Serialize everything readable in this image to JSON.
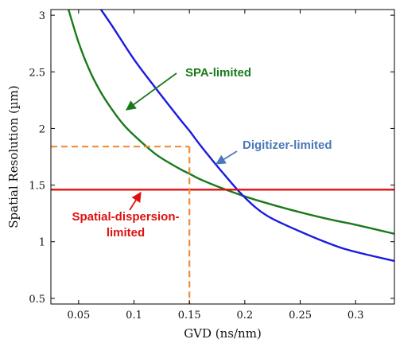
{
  "chart_data": {
    "type": "line",
    "title": "",
    "xlabel": "GVD (ns/nm)",
    "ylabel": "Spatial Resolution (µm)",
    "xlim": [
      0.025,
      0.335
    ],
    "ylim": [
      0.45,
      3.05
    ],
    "x_ticks": [
      0.05,
      0.1,
      0.15,
      0.2,
      0.25,
      0.3
    ],
    "x_tick_labels": [
      "0.05",
      "0.1",
      "0.15",
      "0.2",
      "0.25",
      "0.3"
    ],
    "y_ticks": [
      0.5,
      1,
      1.5,
      2,
      2.5,
      3
    ],
    "y_tick_labels": [
      "0.5",
      "1",
      "1.5",
      "2",
      "2.5",
      "3"
    ],
    "grid": false,
    "series": [
      {
        "name": "SPA-limited",
        "color": "#1a7a1a",
        "x": [
          0.04,
          0.05,
          0.06,
          0.07,
          0.08,
          0.09,
          0.1,
          0.12,
          0.14,
          0.15,
          0.16,
          0.18,
          0.2,
          0.22,
          0.25,
          0.28,
          0.3,
          0.335
        ],
        "y": [
          3.08,
          2.76,
          2.51,
          2.32,
          2.17,
          2.04,
          1.94,
          1.77,
          1.65,
          1.6,
          1.55,
          1.47,
          1.4,
          1.34,
          1.26,
          1.19,
          1.15,
          1.07
        ]
      },
      {
        "name": "Digitizer-limited",
        "color": "#1a1ae0",
        "x": [
          0.068,
          0.08,
          0.1,
          0.12,
          0.14,
          0.15,
          0.16,
          0.18,
          0.2,
          0.22,
          0.25,
          0.28,
          0.3,
          0.335
        ],
        "y": [
          3.08,
          2.91,
          2.61,
          2.35,
          2.1,
          1.98,
          1.85,
          1.61,
          1.39,
          1.23,
          1.09,
          0.97,
          0.91,
          0.83
        ]
      },
      {
        "name": "Spatial-dispersion-limited",
        "color": "#e01010",
        "x": [
          0.025,
          0.335
        ],
        "y": [
          1.46,
          1.46
        ]
      }
    ],
    "reference_lines": {
      "color": "#f08c3a",
      "x": 0.15,
      "y": 1.84
    },
    "annotations": [
      {
        "text": "SPA-limited",
        "color": "#1a7a1a",
        "series": "SPA-limited"
      },
      {
        "text": "Digitizer-limited",
        "color": "#4a78b8",
        "series": "Digitizer-limited"
      },
      {
        "text_lines": [
          "Spatial-dispersion-",
          "limited"
        ],
        "color": "#e01010",
        "series": "Spatial-dispersion-limited"
      }
    ]
  }
}
